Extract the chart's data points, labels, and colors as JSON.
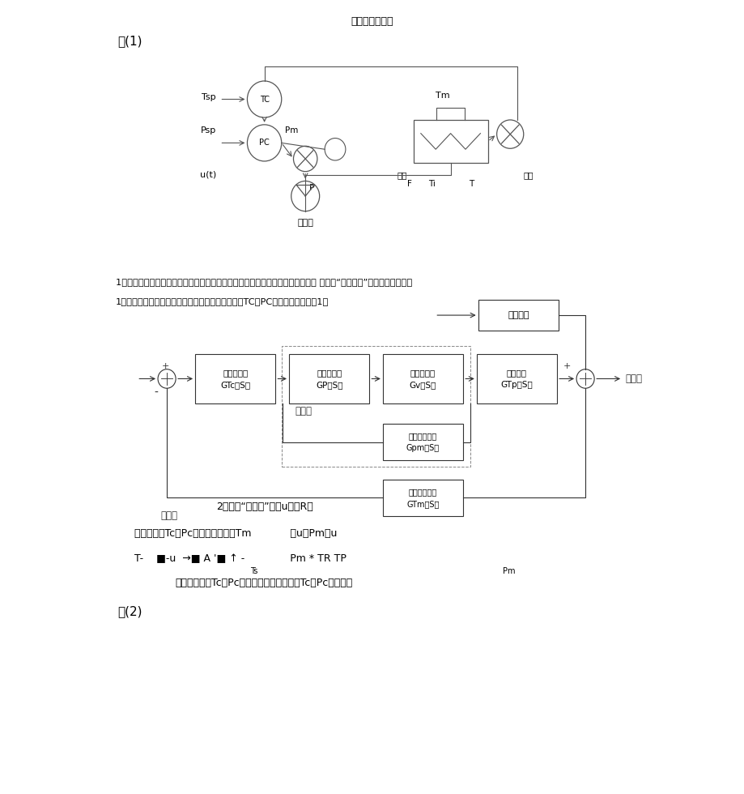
{
  "title": "笔记上的分析题",
  "title_fontsize": 9,
  "bg_color": "#ffffff",
  "text_color": "#000000",
  "section1_label": "题(1)",
  "section2_label": "题(2)",
  "q1_line1": "1）画出控制系统的方块图，说明各环节方块图输入输出物理意义，并指出该系统 主回路“广义对象”的输入输出关系；",
  "q1_line2": "1）请选择调节阀为气开还是气关阀，并确定调节器TC、PC的正反作用；解：1）",
  "ans2_line": "2）选择“气开阀”，即u＿；R；",
  "assume_line": "假设调节器Tc、Pc为正作用，那么Tm            ＞u，Pm＞u",
  "logic_line": "T-    ■-u  →■ A '■ ↑ -              Pm * TR TP",
  "conclusion_line": "因此亡控制器Tc、Pc作用方向不能为正，故Tc、Pc为反作用",
  "blk1_lines": [
    "温度控制器",
    "GTc（S）"
  ],
  "blk2_lines": [
    "压力控制器",
    "GP（S）"
  ],
  "blk3_lines": [
    "燃料控制器",
    "Gv（S）"
  ],
  "blk4_lines": [
    "控制通道",
    "GTp（S）"
  ],
  "disturb_lines": [
    "干扰通道"
  ],
  "pres_meas_lines": [
    "压力测量变送",
    "Gpm（S）"
  ],
  "temp_meas_lines": [
    "温度测量变送",
    "GTm（S）"
  ],
  "label_jinliang": "进料量",
  "label_celiang1": "测量值",
  "label_celiang2": "测量值",
  "label_Tsp": "Tsp",
  "label_Tm": "Tm",
  "label_Psp": "Psp",
  "label_Pm": "Pm",
  "label_ut": "u(t)",
  "label_P": "P",
  "label_ranliao": "燃料气",
  "label_F": "F",
  "label_Ti": "Ti",
  "label_T": "T",
  "label_jinliao": "进料",
  "label_chuliao": "出料",
  "label_TC": "TC",
  "label_PC": "PC",
  "label_Ts_sup": "Ts",
  "label_Pm_sup": "Pm"
}
